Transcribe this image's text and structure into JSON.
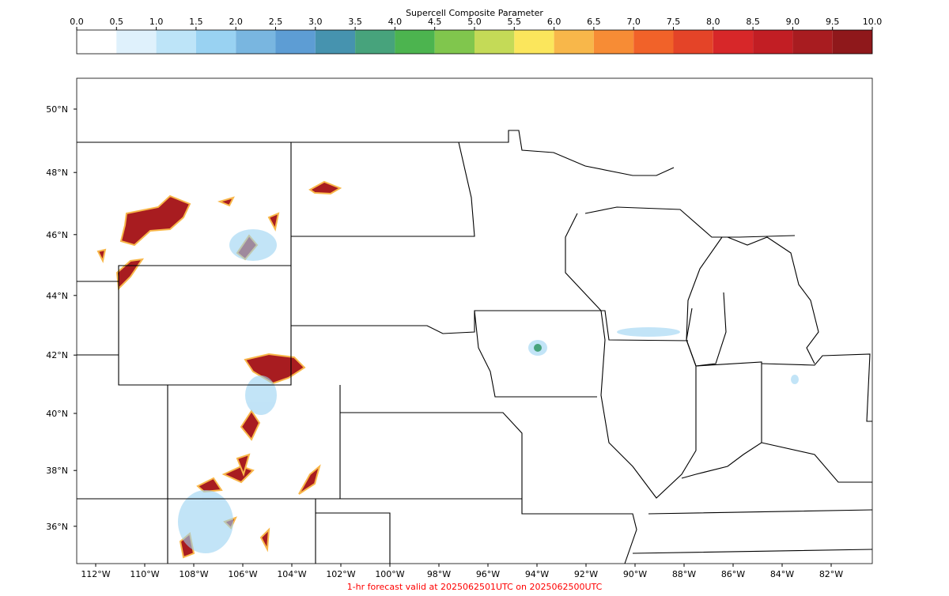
{
  "colorbar": {
    "title": "Supercell Composite Parameter",
    "ticks": [
      {
        "value": 0,
        "label": "0.0"
      },
      {
        "value": 0.5,
        "label": "0.5"
      },
      {
        "value": 1,
        "label": "1.0"
      },
      {
        "value": 1.5,
        "label": "1.5"
      },
      {
        "value": 2,
        "label": "2.0"
      },
      {
        "value": 2.5,
        "label": "2.5"
      },
      {
        "value": 3,
        "label": "3.0"
      },
      {
        "value": 3.5,
        "label": "3.5"
      },
      {
        "value": 4,
        "label": "4.0"
      },
      {
        "value": 4.5,
        "label": "4.5"
      },
      {
        "value": 5,
        "label": "5.0"
      },
      {
        "value": 5.5,
        "label": "5.5"
      },
      {
        "value": 6,
        "label": "6.0"
      },
      {
        "value": 6.5,
        "label": "6.5"
      },
      {
        "value": 7,
        "label": "7.0"
      },
      {
        "value": 7.5,
        "label": "7.5"
      },
      {
        "value": 8,
        "label": "8.0"
      },
      {
        "value": 8.5,
        "label": "8.5"
      },
      {
        "value": 9,
        "label": "9.0"
      },
      {
        "value": 9.5,
        "label": "9.5"
      },
      {
        "value": 10,
        "label": "10.0"
      }
    ],
    "colors": [
      "#ffffff",
      "#dff1fc",
      "#bde4f8",
      "#99d2f2",
      "#79b6e0",
      "#5d9dd4",
      "#4693af",
      "#47a37c",
      "#4cb44f",
      "#80c64d",
      "#c4da57",
      "#fbe65c",
      "#f8b74a",
      "#f78c35",
      "#f16229",
      "#e44428",
      "#d72729",
      "#c21e24",
      "#a81c20",
      "#8f181b"
    ]
  },
  "map": {
    "lon_ticks": [
      {
        "value": -112,
        "label": "112°W"
      },
      {
        "value": -110,
        "label": "110°W"
      },
      {
        "value": -108,
        "label": "108°W"
      },
      {
        "value": -106,
        "label": "106°W"
      },
      {
        "value": -104,
        "label": "104°W"
      },
      {
        "value": -102,
        "label": "102°W"
      },
      {
        "value": -100,
        "label": "100°W"
      },
      {
        "value": -98,
        "label": "98°W"
      },
      {
        "value": -96,
        "label": "96°W"
      },
      {
        "value": -94,
        "label": "94°W"
      },
      {
        "value": -92,
        "label": "92°W"
      },
      {
        "value": -90,
        "label": "90°W"
      },
      {
        "value": -88,
        "label": "88°W"
      },
      {
        "value": -86,
        "label": "86°W"
      },
      {
        "value": -84,
        "label": "84°W"
      },
      {
        "value": -82,
        "label": "82°W"
      }
    ],
    "lat_ticks": [
      {
        "value": 50,
        "label": "50°N"
      },
      {
        "value": 48,
        "label": "48°N"
      },
      {
        "value": 46,
        "label": "46°N"
      },
      {
        "value": 44,
        "label": "44°N"
      },
      {
        "value": 42,
        "label": "42°N"
      },
      {
        "value": 40,
        "label": "40°N"
      },
      {
        "value": 38,
        "label": "38°N"
      },
      {
        "value": 36,
        "label": "36°N"
      }
    ]
  },
  "footer": "1-hr forecast valid at 2025062501UTC on 2025062500UTC"
}
